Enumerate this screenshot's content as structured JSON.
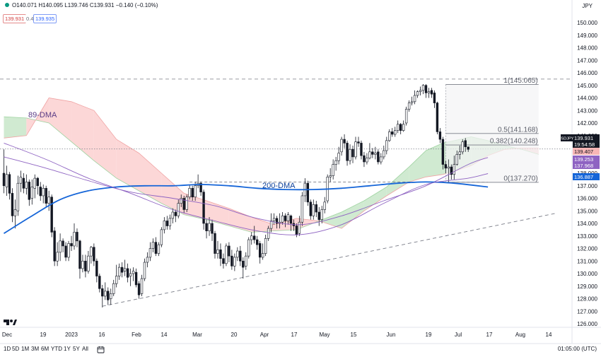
{
  "header": {
    "ohlc_text": "O140.071 H140.095 L139.746 C139.931 −0.140 (−0.10%)",
    "bid": "139.931",
    "spread": "0.4",
    "ask": "139.935",
    "currency": "JPY"
  },
  "footer": {
    "timeframes": [
      "1D",
      "5D",
      "1M",
      "3M",
      "6M",
      "YTD",
      "1Y",
      "5Y",
      "All"
    ],
    "clock": "01:05:00 (UTC)"
  },
  "chart_data": {
    "type": "candlestick",
    "symbol": "USDJPY",
    "y_axis": {
      "ticks": [
        126.0,
        127.0,
        128.0,
        129.0,
        130.0,
        131.0,
        132.0,
        133.0,
        134.0,
        135.0,
        136.0,
        137.0,
        138.0,
        139.0,
        140.0,
        141.0,
        142.0,
        143.0,
        144.0,
        145.0,
        146.0,
        147.0,
        148.0,
        149.0,
        150.0
      ],
      "range": [
        125.7,
        150.5
      ]
    },
    "x_axis": {
      "ticks": [
        "Dec",
        "19",
        "2023",
        "16",
        "Feb",
        "14",
        "Mar",
        "20",
        "Apr",
        "17",
        "May",
        "15",
        "Jun",
        "19",
        "Jul",
        "17",
        "Aug",
        "14"
      ]
    },
    "price_labels": [
      {
        "value": "139.931",
        "color": "#131722",
        "kind": "symbol",
        "text": "USDJPY"
      },
      {
        "value": "19:54:58",
        "color": "#ffffff",
        "kind": "countdown"
      },
      {
        "value": "139.407",
        "color": "#f8b6b6",
        "kind": "value"
      },
      {
        "value": "139.253",
        "color": "#8e63c2",
        "kind": "value"
      },
      {
        "value": "137.968",
        "color": "#8e63c2",
        "kind": "value"
      },
      {
        "value": "136.887",
        "color": "#1565d8",
        "kind": "value"
      }
    ],
    "annotations": {
      "ma89_label": "89-DMA",
      "ma200_label": "200-DMA",
      "fib_levels": [
        {
          "label": "1(145.065)",
          "value": 145.065
        },
        {
          "label": "0.5(141.168)",
          "value": 141.168
        },
        {
          "label": "0.382(140.248)",
          "value": 140.248
        },
        {
          "label": "0(137.270)",
          "value": 137.27
        }
      ],
      "resistance_line": 145.5,
      "support_line": 137.3,
      "last_price_line": 139.93,
      "trendline": {
        "from": [
          "Jan 12",
          127.4
        ],
        "to": [
          "Jul 27",
          134.8
        ]
      }
    },
    "candles": [
      [
        138.0,
        137.0,
        139.9,
        136.4
      ],
      [
        136.9,
        137.9,
        138.6,
        136.2
      ],
      [
        137.9,
        136.4,
        138.1,
        135.9
      ],
      [
        136.4,
        134.6,
        136.8,
        134.1
      ],
      [
        134.6,
        135.1,
        135.9,
        133.6
      ],
      [
        135.0,
        137.2,
        137.8,
        134.6
      ],
      [
        137.2,
        137.7,
        138.2,
        136.5
      ],
      [
        137.6,
        136.8,
        138.0,
        136.4
      ],
      [
        136.8,
        137.3,
        137.9,
        136.3
      ],
      [
        137.3,
        135.9,
        137.5,
        135.4
      ],
      [
        136.0,
        136.9,
        137.5,
        135.5
      ],
      [
        136.8,
        137.6,
        137.9,
        136.0
      ],
      [
        137.6,
        137.0,
        137.7,
        136.3
      ],
      [
        136.9,
        136.2,
        137.3,
        135.8
      ],
      [
        136.2,
        136.8,
        137.1,
        135.6
      ],
      [
        136.8,
        135.6,
        137.0,
        135.3
      ],
      [
        135.6,
        136.1,
        136.6,
        135.0
      ],
      [
        136.1,
        133.3,
        136.3,
        132.9
      ],
      [
        133.4,
        131.0,
        133.7,
        130.6
      ],
      [
        131.0,
        131.7,
        132.5,
        130.6
      ],
      [
        131.7,
        132.6,
        133.2,
        131.0
      ],
      [
        132.6,
        132.2,
        132.8,
        131.7
      ],
      [
        132.2,
        131.3,
        132.5,
        131.0
      ],
      [
        131.3,
        132.4,
        132.6,
        131.0
      ],
      [
        132.4,
        132.2,
        133.0,
        131.8
      ],
      [
        132.2,
        133.3,
        134.0,
        131.9
      ],
      [
        133.3,
        132.6,
        133.6,
        132.1
      ],
      [
        132.6,
        130.4,
        132.7,
        129.6
      ],
      [
        130.4,
        131.0,
        131.5,
        130.1
      ],
      [
        131.0,
        130.2,
        131.5,
        129.7
      ],
      [
        130.2,
        131.4,
        131.8,
        130.0
      ],
      [
        131.4,
        132.1,
        132.2,
        130.8
      ],
      [
        132.1,
        131.0,
        132.4,
        130.6
      ],
      [
        131.0,
        129.8,
        131.2,
        129.3
      ],
      [
        129.8,
        128.8,
        130.0,
        128.5
      ],
      [
        128.8,
        128.2,
        129.1,
        127.3
      ],
      [
        128.2,
        128.6,
        129.3,
        127.9
      ],
      [
        128.6,
        127.9,
        128.9,
        127.5
      ],
      [
        128.0,
        128.4,
        128.8,
        127.5
      ],
      [
        128.4,
        129.2,
        129.5,
        128.2
      ],
      [
        129.2,
        129.8,
        130.7,
        128.9
      ],
      [
        129.8,
        130.5,
        130.8,
        129.5
      ],
      [
        130.5,
        130.1,
        130.9,
        129.7
      ],
      [
        130.2,
        130.4,
        131.1,
        129.8
      ],
      [
        130.4,
        129.7,
        130.8,
        129.3
      ],
      [
        129.8,
        130.0,
        130.4,
        129.0
      ],
      [
        130.0,
        130.2,
        130.5,
        129.4
      ],
      [
        130.1,
        129.1,
        130.4,
        128.9
      ],
      [
        129.2,
        128.3,
        129.4,
        128.0
      ],
      [
        128.4,
        129.6,
        129.9,
        128.2
      ],
      [
        129.6,
        130.9,
        131.2,
        129.4
      ],
      [
        130.9,
        131.3,
        131.7,
        130.5
      ],
      [
        131.3,
        132.0,
        132.5,
        131.0
      ],
      [
        132.0,
        132.5,
        132.8,
        131.7
      ],
      [
        132.5,
        131.6,
        132.9,
        131.4
      ],
      [
        131.6,
        132.3,
        132.5,
        131.4
      ],
      [
        132.3,
        133.5,
        133.7,
        132.1
      ],
      [
        133.5,
        134.2,
        134.5,
        133.2
      ],
      [
        134.2,
        133.8,
        134.6,
        133.5
      ],
      [
        133.8,
        134.4,
        134.7,
        133.5
      ],
      [
        134.4,
        134.9,
        135.2,
        134.0
      ],
      [
        134.9,
        134.6,
        135.1,
        134.1
      ],
      [
        134.6,
        135.6,
        135.9,
        134.4
      ],
      [
        135.6,
        136.0,
        136.3,
        135.3
      ],
      [
        136.0,
        135.1,
        136.2,
        134.8
      ],
      [
        135.1,
        136.1,
        136.3,
        134.9
      ],
      [
        136.1,
        136.8,
        137.1,
        135.9
      ],
      [
        136.8,
        136.1,
        137.0,
        135.8
      ],
      [
        136.1,
        137.0,
        137.3,
        135.8
      ],
      [
        137.0,
        137.2,
        137.9,
        136.8
      ],
      [
        137.2,
        136.5,
        137.3,
        136.2
      ],
      [
        136.5,
        134.0,
        136.7,
        133.5
      ],
      [
        134.0,
        133.4,
        134.3,
        132.8
      ],
      [
        133.4,
        134.0,
        134.5,
        133.0
      ],
      [
        134.0,
        133.2,
        134.3,
        132.6
      ],
      [
        133.2,
        131.6,
        133.4,
        131.2
      ],
      [
        131.6,
        131.9,
        132.6,
        131.2
      ],
      [
        131.9,
        131.2,
        132.4,
        130.6
      ],
      [
        131.2,
        130.8,
        131.6,
        130.4
      ],
      [
        130.8,
        132.2,
        132.4,
        130.6
      ],
      [
        132.2,
        131.4,
        132.5,
        130.9
      ],
      [
        131.4,
        130.6,
        131.9,
        130.3
      ],
      [
        130.6,
        131.3,
        131.6,
        130.2
      ],
      [
        131.3,
        131.8,
        132.1,
        131.0
      ],
      [
        131.8,
        131.0,
        132.2,
        130.6
      ],
      [
        131.0,
        130.5,
        131.3,
        129.6
      ],
      [
        130.6,
        131.4,
        131.7,
        130.3
      ],
      [
        131.4,
        132.7,
        132.9,
        131.2
      ],
      [
        132.7,
        133.0,
        133.3,
        132.3
      ],
      [
        133.0,
        132.7,
        133.8,
        132.4
      ],
      [
        132.7,
        132.3,
        133.0,
        131.9
      ],
      [
        132.4,
        131.3,
        132.6,
        130.8
      ],
      [
        131.3,
        131.6,
        132.4,
        131.1
      ],
      [
        131.6,
        132.8,
        133.1,
        131.4
      ],
      [
        132.8,
        133.6,
        133.8,
        132.6
      ],
      [
        133.6,
        134.2,
        134.8,
        133.3
      ],
      [
        134.2,
        134.4,
        134.8,
        133.9
      ],
      [
        134.4,
        134.0,
        134.6,
        133.6
      ],
      [
        134.0,
        134.1,
        134.8,
        133.6
      ],
      [
        134.1,
        134.6,
        134.9,
        133.9
      ],
      [
        134.6,
        134.2,
        134.8,
        133.7
      ],
      [
        134.2,
        134.7,
        134.9,
        133.9
      ],
      [
        134.6,
        134.0,
        134.7,
        133.4
      ],
      [
        134.0,
        133.8,
        134.3,
        133.4
      ],
      [
        133.8,
        133.1,
        134.0,
        132.9
      ],
      [
        133.2,
        134.1,
        134.6,
        133.0
      ],
      [
        134.1,
        136.2,
        136.5,
        133.8
      ],
      [
        136.2,
        137.2,
        137.6,
        135.7
      ],
      [
        137.2,
        135.7,
        137.4,
        135.4
      ],
      [
        135.7,
        134.6,
        135.9,
        134.3
      ],
      [
        134.6,
        135.5,
        135.9,
        134.3
      ],
      [
        135.5,
        134.9,
        135.8,
        134.5
      ],
      [
        134.9,
        134.3,
        135.3,
        133.8
      ],
      [
        134.3,
        135.1,
        135.4,
        134.0
      ],
      [
        135.1,
        135.7,
        136.1,
        134.8
      ],
      [
        135.8,
        137.7,
        137.9,
        135.6
      ],
      [
        137.7,
        137.8,
        138.4,
        137.3
      ],
      [
        137.8,
        138.7,
        139.1,
        137.5
      ],
      [
        138.7,
        139.0,
        139.3,
        138.2
      ],
      [
        139.0,
        139.6,
        140.1,
        138.7
      ],
      [
        139.7,
        140.7,
        140.9,
        139.4
      ],
      [
        140.7,
        140.4,
        141.1,
        140.0
      ],
      [
        140.4,
        139.0,
        140.6,
        138.6
      ],
      [
        139.0,
        139.9,
        140.3,
        138.7
      ],
      [
        139.9,
        139.3,
        140.2,
        138.8
      ],
      [
        139.3,
        140.5,
        140.9,
        139.1
      ],
      [
        140.5,
        140.4,
        140.9,
        140.1
      ],
      [
        140.4,
        139.4,
        140.6,
        139.1
      ],
      [
        139.4,
        138.9,
        139.7,
        138.5
      ],
      [
        138.9,
        139.2,
        139.6,
        138.7
      ],
      [
        139.2,
        139.7,
        140.4,
        139.1
      ],
      [
        139.7,
        139.5,
        140.0,
        139.2
      ],
      [
        139.5,
        139.6,
        140.1,
        139.1
      ],
      [
        139.7,
        138.9,
        139.9,
        138.7
      ],
      [
        138.9,
        139.3,
        139.6,
        138.7
      ],
      [
        139.3,
        139.8,
        140.2,
        139.1
      ],
      [
        139.8,
        140.6,
        140.9,
        139.5
      ],
      [
        140.6,
        141.3,
        141.5,
        140.5
      ],
      [
        141.3,
        141.1,
        141.6,
        140.9
      ],
      [
        141.1,
        141.4,
        141.7,
        140.9
      ],
      [
        141.4,
        141.9,
        142.2,
        141.2
      ],
      [
        141.9,
        141.4,
        142.0,
        141.1
      ],
      [
        141.4,
        141.9,
        142.2,
        141.3
      ],
      [
        142.0,
        143.1,
        143.3,
        141.8
      ],
      [
        143.1,
        143.6,
        143.8,
        142.9
      ],
      [
        143.6,
        143.7,
        144.1,
        143.4
      ],
      [
        143.7,
        144.2,
        144.6,
        143.5
      ],
      [
        144.2,
        144.5,
        144.6,
        144.0
      ],
      [
        144.5,
        144.6,
        144.9,
        144.2
      ],
      [
        144.6,
        145.0,
        145.1,
        144.3
      ],
      [
        145.0,
        144.4,
        145.1,
        144.0
      ],
      [
        144.4,
        144.5,
        144.8,
        144.0
      ],
      [
        144.6,
        144.3,
        144.8,
        144.0
      ],
      [
        144.4,
        143.6,
        144.6,
        143.2
      ],
      [
        143.6,
        141.3,
        143.7,
        141.1
      ],
      [
        141.3,
        140.7,
        141.6,
        140.4
      ],
      [
        140.7,
        138.7,
        140.9,
        138.3
      ],
      [
        138.7,
        138.4,
        139.0,
        138.0
      ],
      [
        138.4,
        138.5,
        139.1,
        137.3
      ],
      [
        138.5,
        137.9,
        138.7,
        137.5
      ],
      [
        137.9,
        138.7,
        139.4,
        137.5
      ],
      [
        138.7,
        139.5,
        139.8,
        138.6
      ],
      [
        139.5,
        139.7,
        140.2,
        139.1
      ],
      [
        139.7,
        140.5,
        140.7,
        139.5
      ],
      [
        140.6,
        140.1,
        140.8,
        139.7
      ],
      [
        140.1,
        139.9,
        140.1,
        139.7
      ]
    ],
    "series": [
      {
        "name": "89-DMA",
        "color": "#8e63c2",
        "x": [
          0,
          15,
          30,
          45,
          60,
          75,
          90,
          105,
          120,
          135,
          150,
          165,
          172
        ],
        "y": [
          139.3,
          138.4,
          137.4,
          136.5,
          136.0,
          135.4,
          134.4,
          133.9,
          134.6,
          135.8,
          137.0,
          138.7,
          139.25
        ]
      },
      {
        "name": "200-DMA",
        "color": "#1565d8",
        "x": [
          0,
          10,
          20,
          30,
          40,
          50,
          60,
          70,
          80,
          90,
          100,
          110,
          120,
          130,
          140,
          150,
          160,
          172
        ],
        "y": [
          133.2,
          134.6,
          135.9,
          136.6,
          136.9,
          137.0,
          137.0,
          137.1,
          137.0,
          136.8,
          136.7,
          136.7,
          136.8,
          137.0,
          137.2,
          137.3,
          137.2,
          136.9
        ]
      },
      {
        "name": "",
        "color": "#8e63c2",
        "x": [
          0,
          15,
          30,
          45,
          60,
          75,
          90,
          105,
          120,
          135,
          150,
          165,
          172
        ],
        "y": [
          140.4,
          139.1,
          137.6,
          136.4,
          135.1,
          134.2,
          133.4,
          133.1,
          133.9,
          135.6,
          137.1,
          137.6,
          137.97
        ]
      }
    ],
    "cloud": {
      "x": [
        0,
        8,
        16,
        24,
        32,
        40,
        48,
        56,
        64,
        72,
        80,
        88,
        96,
        104,
        112,
        120,
        128,
        136,
        144,
        150,
        156,
        162,
        166,
        172,
        178,
        184,
        190
      ],
      "a": [
        142.5,
        142.4,
        142.0,
        140.5,
        139.0,
        137.6,
        136.6,
        135.6,
        134.7,
        134.3,
        133.8,
        133.3,
        133.4,
        133.5,
        134.2,
        134.9,
        135.8,
        136.9,
        138.5,
        139.8,
        140.4,
        140.7,
        140.9,
        140.6,
        140.2,
        139.9,
        139.5
      ],
      "b": [
        140.8,
        141.0,
        144.0,
        143.7,
        143.0,
        140.7,
        139.6,
        138.0,
        136.4,
        135.8,
        135.2,
        134.5,
        133.9,
        134.4,
        134.2,
        133.6,
        135.0,
        136.2,
        137.3,
        137.7,
        137.9,
        138.3,
        138.6,
        139.4,
        139.9,
        140.0,
        140.0
      ]
    }
  }
}
